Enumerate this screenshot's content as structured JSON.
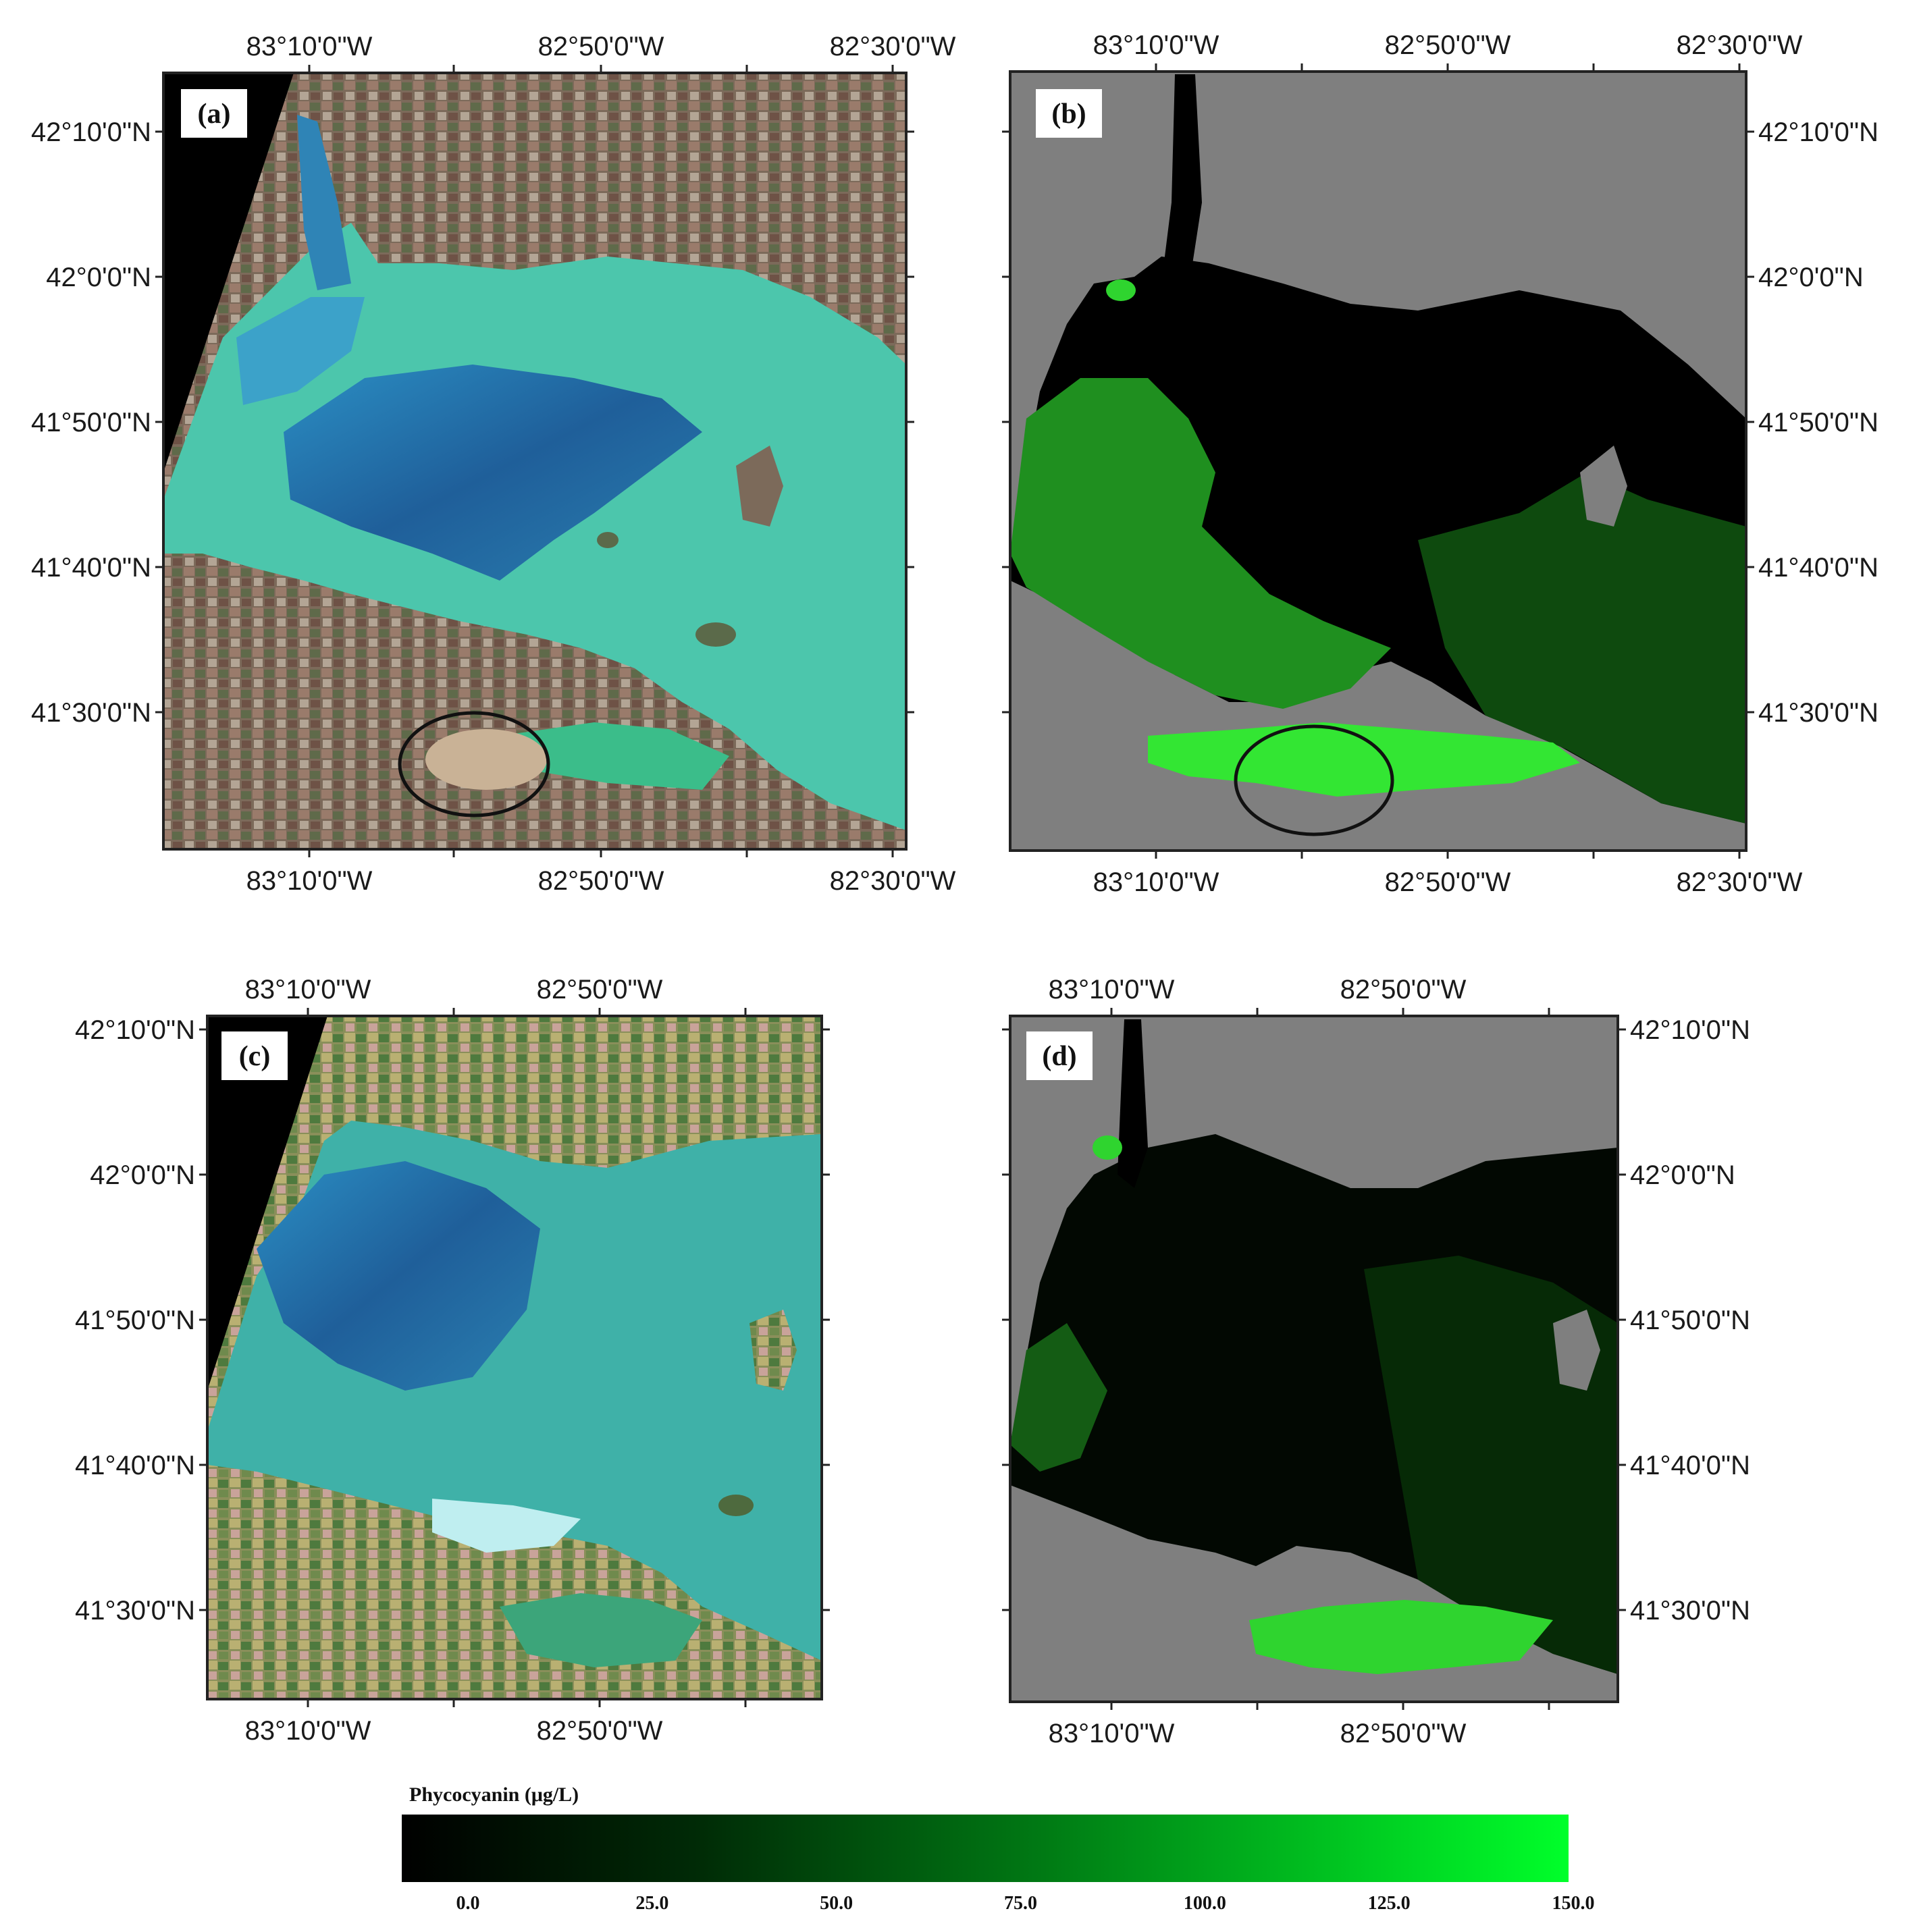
{
  "panels": {
    "a": {
      "label": "(a)",
      "top_lon": [
        "83°10'0\"W",
        "82°50'0\"W",
        "82°30'0\"W"
      ],
      "bottom_lon": [
        "83°10'0\"W",
        "82°50'0\"W",
        "82°30'0\"W"
      ],
      "left_lat": [
        "42°10'0\"N",
        "42°0'0\"N",
        "41°50'0\"N",
        "41°40'0\"N",
        "41°30'0\"N"
      ],
      "annotation": "ellipse"
    },
    "b": {
      "label": "(b)",
      "top_lon": [
        "83°10'0\"W",
        "82°50'0\"W",
        "82°30'0\"W"
      ],
      "bottom_lon": [
        "83°10'0\"W",
        "82°50'0\"W",
        "82°30'0\"W"
      ],
      "right_lat": [
        "42°10'0\"N",
        "42°0'0\"N",
        "41°50'0\"N",
        "41°40'0\"N",
        "41°30'0\"N"
      ],
      "annotation": "ellipse"
    },
    "c": {
      "label": "(c)",
      "top_lon": [
        "83°10'0\"W",
        "82°50'0\"W"
      ],
      "bottom_lon": [
        "83°10'0\"W",
        "82°50'0\"W"
      ],
      "left_lat": [
        "42°10'0\"N",
        "42°0'0\"N",
        "41°50'0\"N",
        "41°40'0\"N",
        "41°30'0\"N"
      ]
    },
    "d": {
      "label": "(d)",
      "top_lon": [
        "83°10'0\"W",
        "82°50'0\"W"
      ],
      "bottom_lon": [
        "83°10'0\"W",
        "82°50'0\"W"
      ],
      "right_lat": [
        "42°10'0\"N",
        "42°0'0\"N",
        "41°50'0\"N",
        "41°40'0\"N",
        "41°30'0\"N"
      ]
    }
  },
  "colorbar": {
    "title": "Phycocyanin (μg/L)",
    "ticks": [
      "0.0",
      "25.0",
      "50.0",
      "75.0",
      "100.0",
      "125.0",
      "150.0"
    ],
    "min": 0,
    "max": 150,
    "color_low": "#000000",
    "color_high": "#00ff2a"
  },
  "colors": {
    "land_true_color": "#7a6a58",
    "water_turquoise": "#4fc3b0",
    "water_deep": "#1d4f8a",
    "phycocyanin_mask": "#7f7f7f",
    "phycocyanin_bright": "#33e633"
  }
}
